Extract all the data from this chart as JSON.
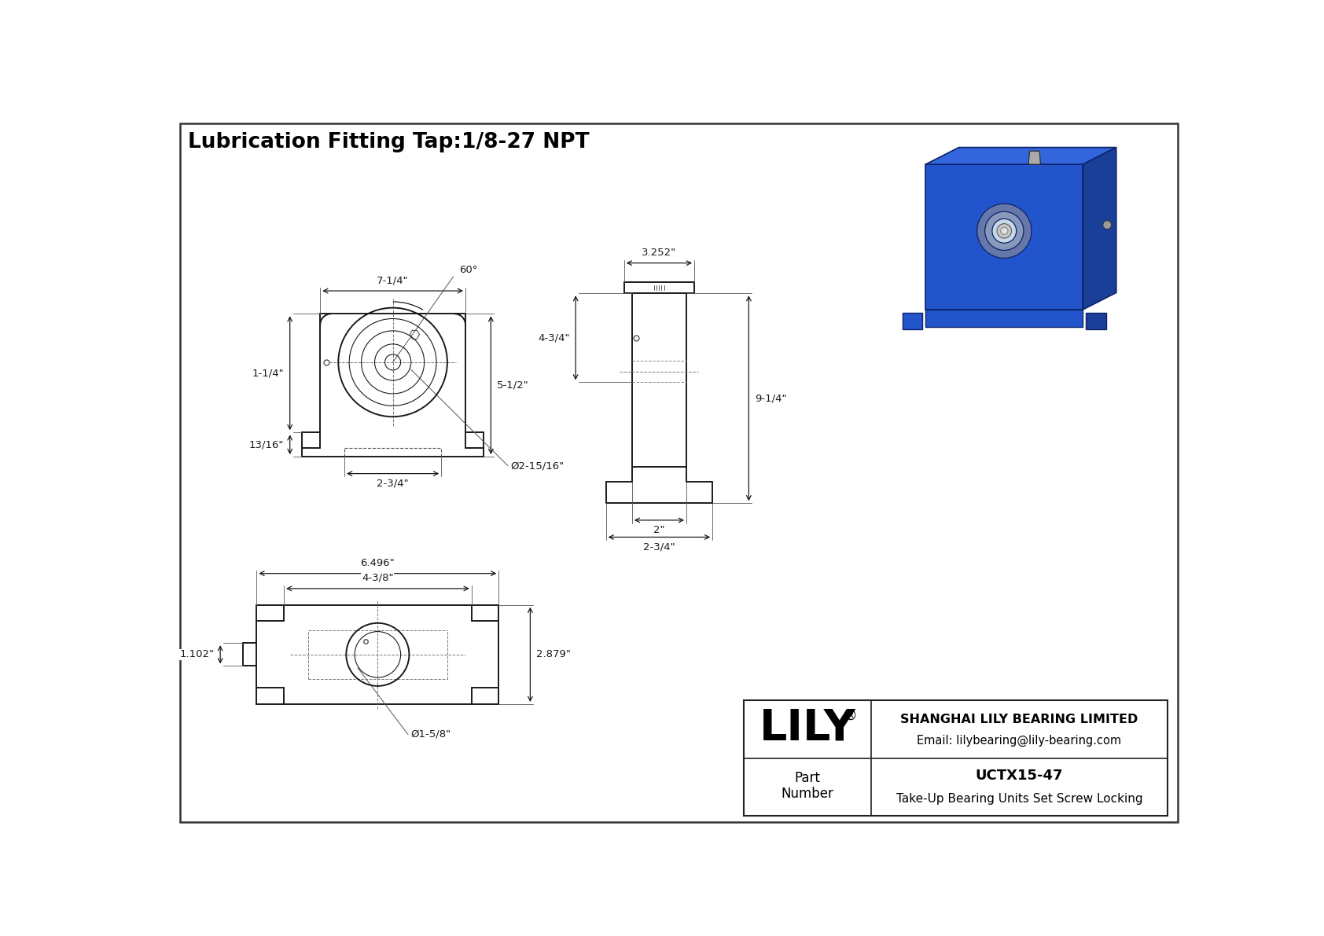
{
  "bg_color": "#ffffff",
  "border_color": "#000000",
  "line_color": "#1a1a1a",
  "title_text": "Lubrication Fitting Tap:1/8-27 NPT",
  "title_fontsize": 19,
  "dim_fontsize": 9.5,
  "company_name": "SHANGHAI LILY BEARING LIMITED",
  "company_email": "Email: lilybearing@lily-bearing.com",
  "part_label": "Part\nNumber",
  "part_number": "UCTX15-47",
  "part_desc": "Take-Up Bearing Units Set Screw Locking",
  "lily_logo": "LILY",
  "dims_front": {
    "width_top": "7-1/4\"",
    "height_right": "5-1/2\"",
    "height_left": "1-1/4\"",
    "height_bottom_left": "13/16\"",
    "width_bottom": "2-3/4\"",
    "bore_dia": "Ø2-15/16\"",
    "angle": "60°"
  },
  "dims_side": {
    "width_top": "3.252\"",
    "height_left": "4-3/4\"",
    "height_right": "9-1/4\"",
    "width_bottom1": "2\"",
    "width_bottom2": "2-3/4\""
  },
  "dims_bottom": {
    "width_top": "6.496\"",
    "width_mid": "4-3/8\"",
    "height_right": "2.879\"",
    "height_bottom": "1.102\"",
    "bore_dia": "Ø1-5/8\""
  },
  "iso_colors": {
    "front": "#2255cc",
    "top": "#3366dd",
    "right": "#1a3f99",
    "circle1": "#6677aa",
    "circle2": "#8899bb",
    "circle3": "#aabbcc",
    "bore": "#c8d8e8",
    "edge": "#0d2266"
  }
}
